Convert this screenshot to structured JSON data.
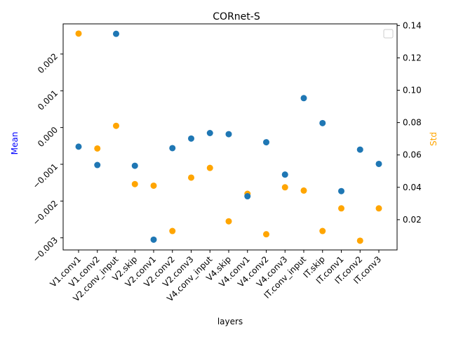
{
  "chart_data": {
    "type": "scatter",
    "title": "CORnet-S",
    "xlabel": "layers",
    "ylabel_left": "Mean",
    "ylabel_right": "Std",
    "categories": [
      "V1.conv1",
      "V1.conv2",
      "V2.conv_input",
      "V2.skip",
      "V2.conv1",
      "V2.conv2",
      "V2.conv3",
      "V4.conv_input",
      "V4.skip",
      "V4.conv1",
      "V4.conv2",
      "V4.conv3",
      "IT.conv_input",
      "IT.skip",
      "IT.conv1",
      "IT.conv2",
      "IT.conv3"
    ],
    "left_axis": {
      "ylim": [
        -0.00333,
        0.00282
      ],
      "ticks": [
        -0.003,
        -0.002,
        -0.001,
        0.0,
        0.001,
        0.002
      ],
      "tick_labels": [
        "−0.003",
        "−0.002",
        "−0.001",
        "0.000",
        "0.001",
        "0.002"
      ]
    },
    "right_axis": {
      "ylim": [
        0.0013,
        0.141
      ],
      "ticks": [
        0.02,
        0.04,
        0.06,
        0.08,
        0.1,
        0.12,
        0.14
      ],
      "tick_labels": [
        "0.02",
        "0.04",
        "0.06",
        "0.08",
        "0.10",
        "0.12",
        "0.14"
      ]
    },
    "series": [
      {
        "axis": "left",
        "color": "#1f77b4",
        "values": [
          -0.00052,
          -0.00102,
          0.00255,
          -0.00104,
          -0.00305,
          -0.00056,
          -0.0003,
          -0.00015,
          -0.00018,
          -0.00187,
          -0.0004,
          -0.00128,
          0.0008,
          0.00012,
          -0.00173,
          -0.0006,
          -0.00099
        ]
      },
      {
        "axis": "right",
        "color": "#ffa500",
        "values": [
          0.135,
          0.064,
          0.078,
          0.042,
          0.041,
          0.013,
          0.046,
          0.052,
          0.019,
          0.036,
          0.011,
          0.04,
          0.038,
          0.013,
          0.027,
          0.007,
          0.027
        ]
      }
    ],
    "legend": "top-right",
    "grid": false
  }
}
